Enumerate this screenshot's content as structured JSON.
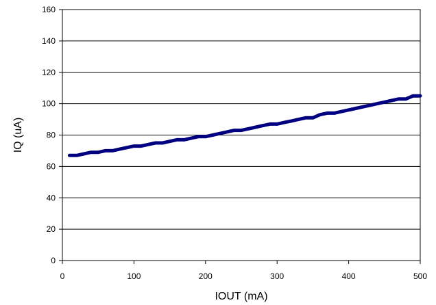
{
  "chart_data": {
    "type": "line",
    "title": "",
    "xlabel": "IOUT (mA)",
    "ylabel": "IQ (uA)",
    "xlim": [
      0,
      500
    ],
    "ylim": [
      0,
      160
    ],
    "x_ticks": [
      0,
      100,
      200,
      300,
      400,
      500
    ],
    "y_ticks": [
      0,
      20,
      40,
      60,
      80,
      100,
      120,
      140,
      160
    ],
    "x_tick_labels": [
      "0",
      "100",
      "200",
      "300",
      "400",
      "500"
    ],
    "y_tick_labels": [
      "0",
      "20",
      "40",
      "60",
      "80",
      "100",
      "120",
      "140",
      "160"
    ],
    "grid": "horizontal",
    "series": [
      {
        "color": "#000080",
        "x": [
          10,
          20,
          30,
          40,
          50,
          60,
          70,
          80,
          90,
          100,
          110,
          120,
          130,
          140,
          150,
          160,
          170,
          180,
          190,
          200,
          210,
          220,
          230,
          240,
          250,
          260,
          270,
          280,
          290,
          300,
          310,
          320,
          330,
          340,
          350,
          360,
          370,
          380,
          390,
          400,
          410,
          420,
          430,
          440,
          450,
          460,
          470,
          480,
          490,
          500
        ],
        "y": [
          67,
          67,
          68,
          69,
          69,
          70,
          70,
          71,
          72,
          73,
          73,
          74,
          75,
          75,
          76,
          77,
          77,
          78,
          79,
          79,
          80,
          81,
          82,
          83,
          83,
          84,
          85,
          86,
          87,
          87,
          88,
          89,
          90,
          91,
          91,
          93,
          94,
          94,
          95,
          96,
          97,
          98,
          99,
          100,
          101,
          102,
          103,
          103,
          105,
          105
        ]
      }
    ]
  }
}
